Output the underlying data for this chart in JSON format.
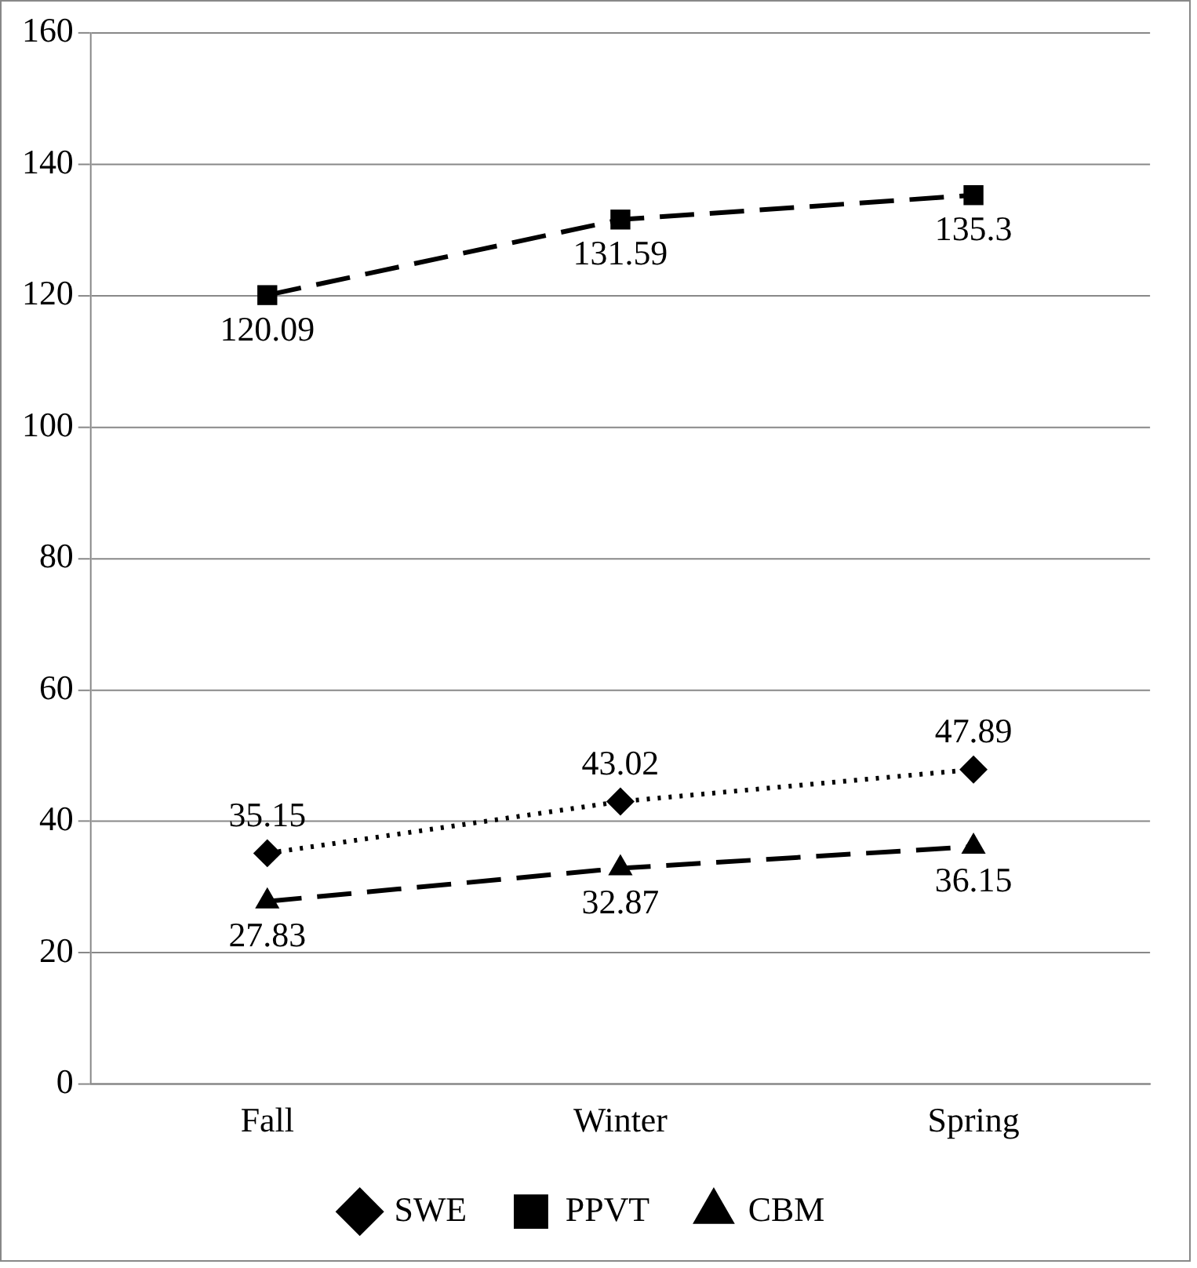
{
  "chart_data": {
    "type": "line",
    "categories": [
      "Fall",
      "Winter",
      "Spring"
    ],
    "series": [
      {
        "name": "SWE",
        "color": "#000000",
        "values": [
          35.15,
          43.02,
          47.89
        ],
        "marker": "diamond",
        "line_style": "dotted"
      },
      {
        "name": "PPVT",
        "color": "#000000",
        "values": [
          120.09,
          131.59,
          135.3
        ],
        "marker": "square",
        "line_style": "dashed"
      },
      {
        "name": "CBM",
        "color": "#000000",
        "values": [
          27.83,
          32.87,
          36.15
        ],
        "marker": "triangle",
        "line_style": "dashed"
      }
    ],
    "ylim": [
      0,
      160
    ],
    "yticks": [
      0,
      20,
      40,
      60,
      80,
      100,
      120,
      140,
      160
    ],
    "grid": "y",
    "legend": "bottom",
    "data_labels": true
  }
}
